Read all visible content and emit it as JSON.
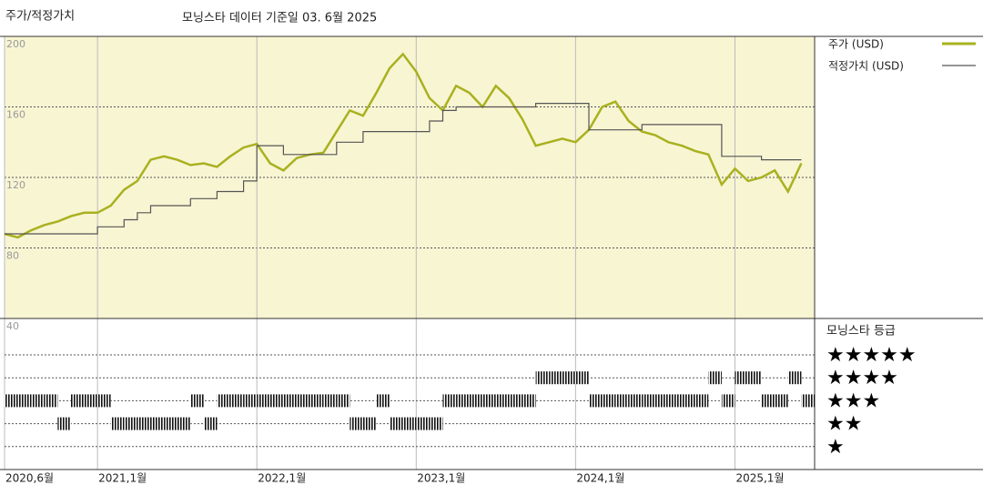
{
  "chart_data": {
    "type": "line",
    "title": "주가/적정가치",
    "subtitle": "모닝스타 데이터 기준일 03. 6월 2025",
    "x": [
      "2020-06",
      "2020-07",
      "2020-08",
      "2020-09",
      "2020-10",
      "2020-11",
      "2020-12",
      "2021-01",
      "2021-02",
      "2021-03",
      "2021-04",
      "2021-05",
      "2021-06",
      "2021-07",
      "2021-08",
      "2021-09",
      "2021-10",
      "2021-11",
      "2021-12",
      "2022-01",
      "2022-02",
      "2022-03",
      "2022-04",
      "2022-05",
      "2022-06",
      "2022-07",
      "2022-08",
      "2022-09",
      "2022-10",
      "2022-11",
      "2022-12",
      "2023-01",
      "2023-02",
      "2023-03",
      "2023-04",
      "2023-05",
      "2023-06",
      "2023-07",
      "2023-08",
      "2023-09",
      "2023-10",
      "2023-11",
      "2023-12",
      "2024-01",
      "2024-02",
      "2024-03",
      "2024-04",
      "2024-05",
      "2024-06",
      "2024-07",
      "2024-08",
      "2024-09",
      "2024-10",
      "2024-11",
      "2024-12",
      "2025-01",
      "2025-02",
      "2025-03",
      "2025-04",
      "2025-05",
      "2025-06"
    ],
    "series": [
      {
        "name": "주가 (USD)",
        "color": "#a9b11f",
        "values": [
          88,
          86,
          90,
          93,
          95,
          98,
          100,
          100,
          104,
          113,
          118,
          130,
          132,
          130,
          127,
          128,
          126,
          132,
          137,
          139,
          128,
          124,
          131,
          133,
          134,
          146,
          158,
          155,
          168,
          182,
          190,
          180,
          165,
          158,
          172,
          168,
          160,
          172,
          165,
          153,
          138,
          140,
          142,
          140,
          147,
          160,
          163,
          152,
          146,
          144,
          140,
          138,
          135,
          133,
          116,
          125,
          118,
          120,
          124,
          112,
          128
        ]
      },
      {
        "name": "적정가치 (USD)",
        "color": "#555555",
        "values": [
          88,
          88,
          88,
          88,
          88,
          88,
          88,
          92,
          92,
          96,
          100,
          104,
          104,
          104,
          108,
          108,
          112,
          112,
          118,
          138,
          138,
          133,
          133,
          133,
          133,
          140,
          140,
          146,
          146,
          146,
          146,
          146,
          152,
          158,
          160,
          160,
          160,
          160,
          160,
          160,
          162,
          162,
          162,
          162,
          147,
          147,
          147,
          147,
          150,
          150,
          150,
          150,
          150,
          150,
          132,
          132,
          132,
          130,
          130,
          130,
          130
        ]
      }
    ],
    "xlim": [
      "2020-06",
      "2025-07"
    ],
    "xticks": [
      {
        "value": "2020-06",
        "label": "2020,6월"
      },
      {
        "value": "2021-01",
        "label": "2021,1월"
      },
      {
        "value": "2022-01",
        "label": "2022,1월"
      },
      {
        "value": "2023-01",
        "label": "2023,1월"
      },
      {
        "value": "2024-01",
        "label": "2024,1월"
      },
      {
        "value": "2025-01",
        "label": "2025,1월"
      }
    ],
    "ylim": [
      40,
      200
    ],
    "yticks": [
      40,
      80,
      120,
      160,
      200
    ],
    "grid": true,
    "rating": {
      "title": "모닝스타 등급",
      "levels": [
        {
          "value": 5,
          "label": "★★★★★"
        },
        {
          "value": 4,
          "label": "★★★★"
        },
        {
          "value": 3,
          "label": "★★★"
        },
        {
          "value": 2,
          "label": "★★"
        },
        {
          "value": 1,
          "label": "★"
        }
      ],
      "values": [
        3,
        3,
        3,
        3,
        2,
        3,
        3,
        3,
        2,
        2,
        2,
        2,
        2,
        2,
        3,
        2,
        3,
        3,
        3,
        3,
        3,
        3,
        3,
        3,
        3,
        3,
        2,
        2,
        3,
        2,
        2,
        2,
        2,
        3,
        3,
        3,
        3,
        3,
        3,
        3,
        4,
        4,
        4,
        4,
        3,
        3,
        3,
        3,
        3,
        3,
        3,
        3,
        3,
        4,
        3,
        4,
        4,
        3,
        3,
        4,
        3
      ]
    }
  }
}
